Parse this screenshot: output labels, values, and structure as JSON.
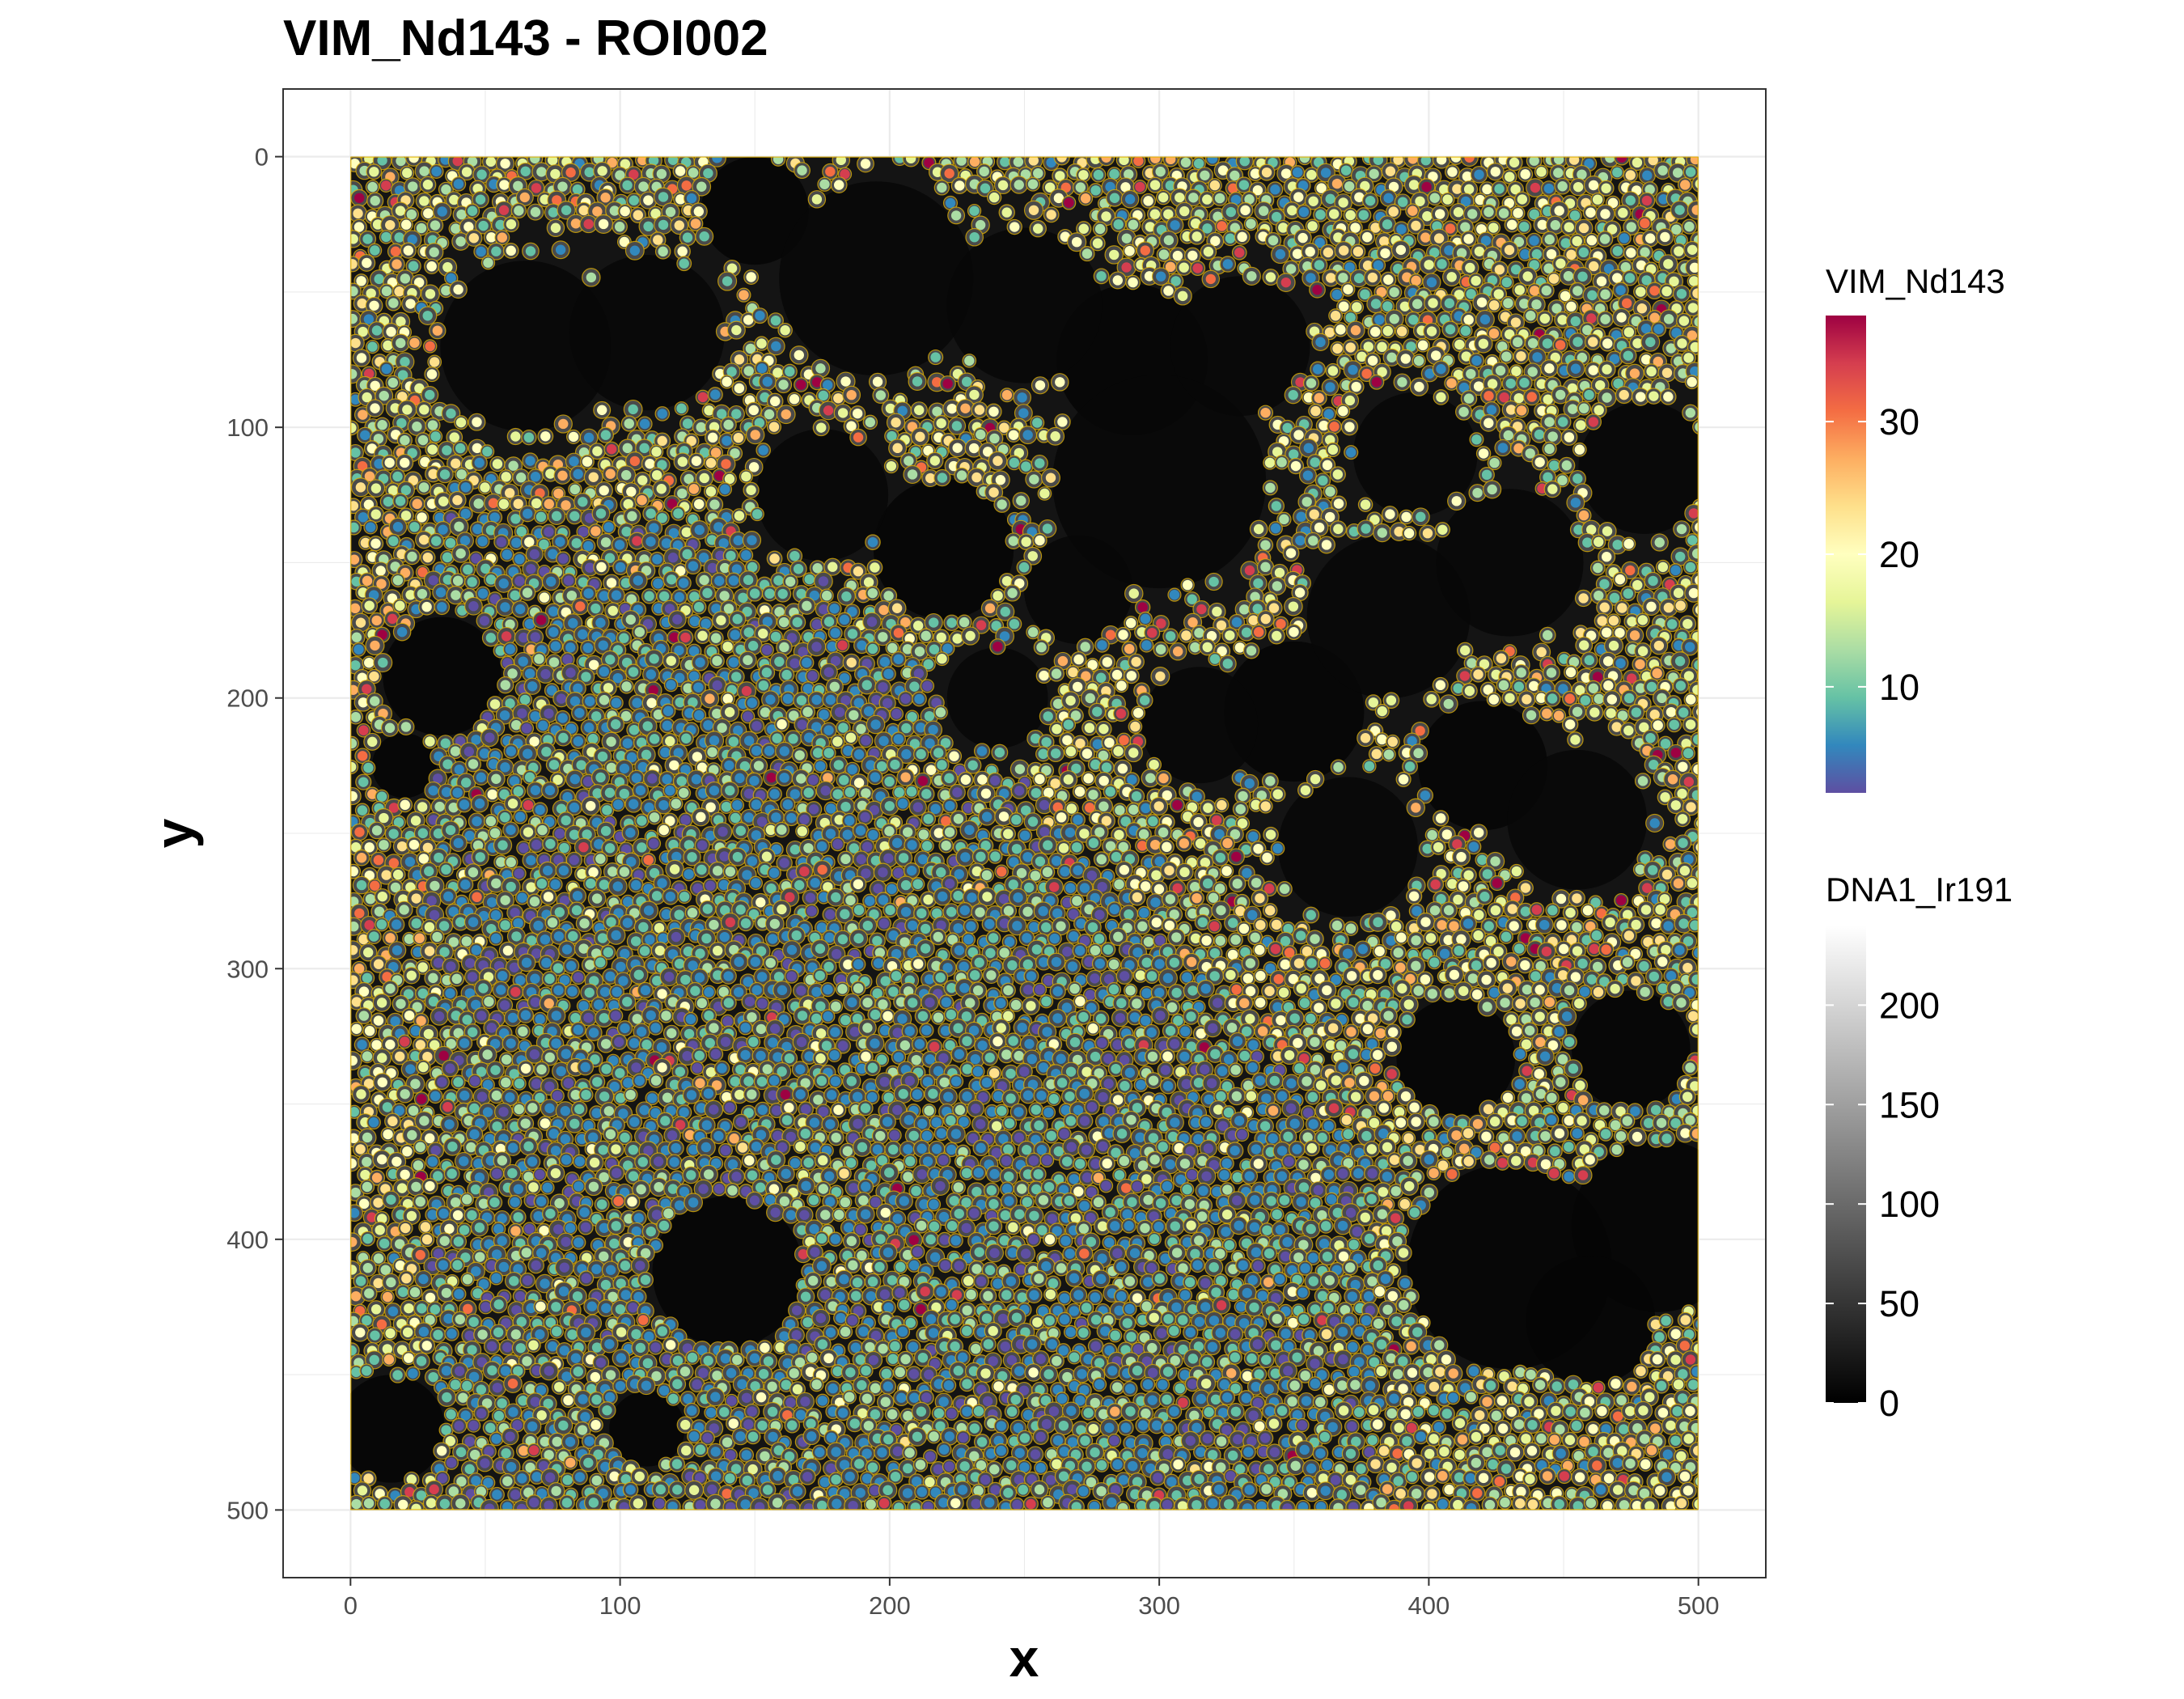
{
  "chart_data": {
    "type": "scatter",
    "subtype": "imaging-mass-cytometry cell overlay",
    "title": "VIM_Nd143 - ROI002",
    "xlabel": "x",
    "ylabel": "y",
    "xlim": [
      -25,
      525
    ],
    "ylim": [
      525,
      -25
    ],
    "y_axis_reversed": true,
    "x_ticks": [
      0,
      100,
      200,
      300,
      400,
      500
    ],
    "y_ticks": [
      0,
      100,
      200,
      300,
      400,
      500
    ],
    "grid": true,
    "image_extent": {
      "x": [
        0,
        500
      ],
      "y": [
        0,
        500
      ]
    },
    "cell_outline_color": "#e6b400",
    "background_image": {
      "channel": "DNA1_Ir191",
      "colormap": "gray",
      "range": [
        0,
        240
      ],
      "legend_ticks": [
        0,
        50,
        100,
        150,
        200
      ]
    },
    "point_color": {
      "marker": "VIM_Nd143",
      "colormap": "Spectral (reversed)",
      "range": [
        2,
        38
      ],
      "legend_ticks": [
        10,
        20,
        30
      ]
    },
    "legend_placement": "right",
    "legends": [
      {
        "title": "VIM_Nd143",
        "ticks": [
          "10",
          "20",
          "30"
        ]
      },
      {
        "title": "DNA1_Ir191",
        "ticks": [
          "0",
          "50",
          "100",
          "150",
          "200"
        ]
      }
    ]
  }
}
